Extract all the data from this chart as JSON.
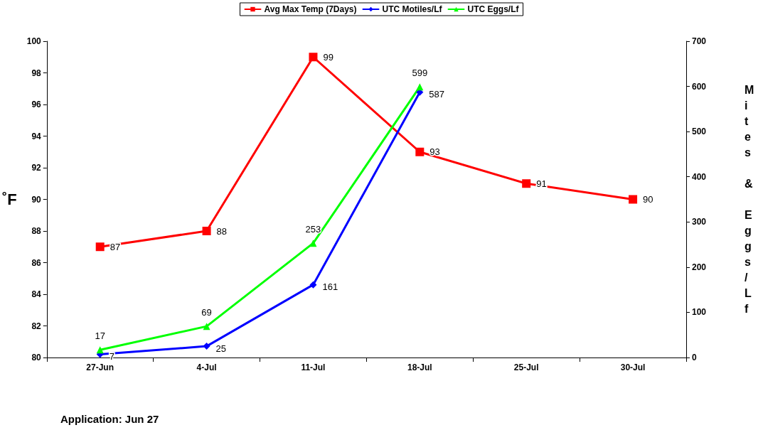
{
  "chart_data": {
    "type": "line",
    "categories": [
      "27-Jun",
      "4-Jul",
      "11-Jul",
      "18-Jul",
      "25-Jul",
      "30-Jul"
    ],
    "series": [
      {
        "name": "Avg Max Temp (7Days)",
        "color": "#ff0000",
        "marker": "square",
        "values": [
          87,
          88,
          99,
          93,
          91,
          90
        ]
      },
      {
        "name": "UTC Motiles/Lf",
        "color": "#0000ff",
        "marker": "diamond",
        "axis": "y2",
        "values": [
          7,
          25,
          161,
          587,
          null,
          null
        ]
      },
      {
        "name": "UTC Eggs/Lf",
        "color": "#00ff00",
        "marker": "triangle",
        "axis": "y2",
        "values": [
          17,
          69,
          253,
          599,
          null,
          null
        ]
      }
    ],
    "ylabel": "˚F",
    "y2label": "Mites & Eggs/Lf",
    "ylim": [
      80,
      100
    ],
    "yticks": [
      80,
      82,
      84,
      86,
      88,
      90,
      92,
      94,
      96,
      98,
      100
    ],
    "y2lim": [
      0,
      700
    ],
    "y2ticks": [
      0,
      100,
      200,
      300,
      400,
      500,
      600,
      700
    ],
    "data_labels": true,
    "legend": "top",
    "grid": false,
    "line_style": "solid",
    "annotations": [
      "Application: Jun 27"
    ]
  }
}
